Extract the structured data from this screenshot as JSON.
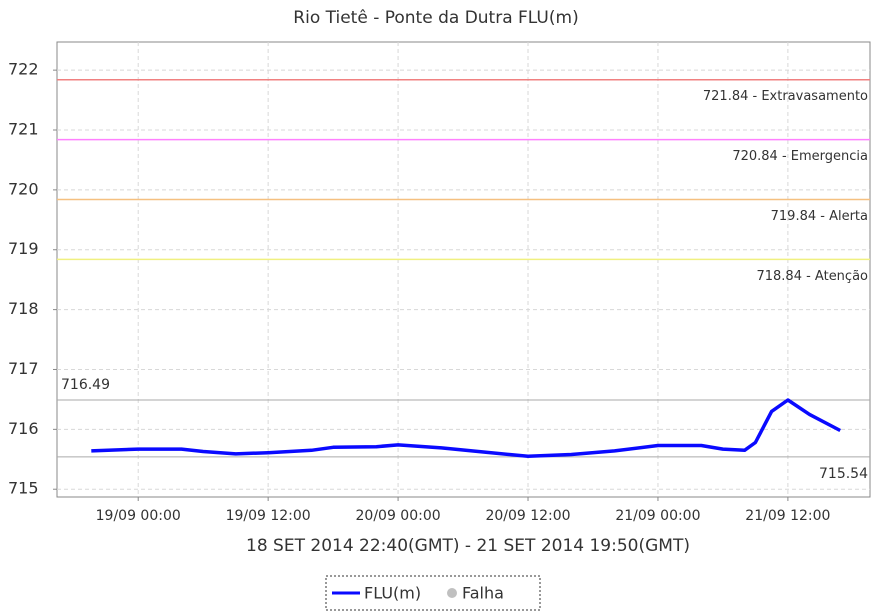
{
  "chart_data": {
    "type": "line",
    "title": "Rio Tietê - Ponte da Dutra FLU(m)",
    "xlabel": "18 SET 2014 22:40(GMT) - 21 SET 2014 19:50(GMT)",
    "xlim": [
      "18/09 16:30",
      "21/09 19:35"
    ],
    "xticks": [
      "19/09 00:00",
      "19/09 12:00",
      "20/09 00:00",
      "20/09 12:00",
      "21/09 00:00",
      "21/09 12:00"
    ],
    "ylim": [
      714.87,
      722.47
    ],
    "yticks": [
      715,
      716,
      717,
      718,
      719,
      720,
      721,
      722
    ],
    "grid": true,
    "series": [
      {
        "name": "FLU(m)",
        "color": "#0a0aff",
        "x": [
          "18/09 19:40",
          "19/09 00:00",
          "19/09 04:00",
          "19/09 06:00",
          "19/09 09:00",
          "19/09 12:00",
          "19/09 16:00",
          "19/09 18:00",
          "19/09 22:00",
          "20/09 00:00",
          "20/09 04:00",
          "20/09 08:00",
          "20/09 12:00",
          "20/09 16:00",
          "20/09 20:00",
          "21/09 00:00",
          "21/09 04:00",
          "21/09 06:00",
          "21/09 08:00",
          "21/09 09:00",
          "21/09 10:30",
          "21/09 12:00",
          "21/09 14:00",
          "21/09 16:50"
        ],
        "values": [
          715.64,
          715.67,
          715.67,
          715.63,
          715.59,
          715.61,
          715.65,
          715.7,
          715.71,
          715.74,
          715.69,
          715.62,
          715.55,
          715.58,
          715.64,
          715.73,
          715.73,
          715.67,
          715.65,
          715.78,
          716.3,
          716.49,
          716.25,
          715.98
        ]
      },
      {
        "name": "Falha",
        "color": "#c0c0c0",
        "x": [],
        "values": []
      }
    ],
    "thresholds": [
      {
        "value": 721.84,
        "label": "721.84 - Extravasamento",
        "color": "#f08080"
      },
      {
        "value": 720.84,
        "label": "720.84 - Emergencia",
        "color": "#ff80ff"
      },
      {
        "value": 719.84,
        "label": "719.84 - Alerta",
        "color": "#f5c080"
      },
      {
        "value": 718.84,
        "label": "718.84 - Atenção",
        "color": "#f0f080"
      }
    ],
    "max_line": 716.49,
    "min_line": 715.54
  }
}
